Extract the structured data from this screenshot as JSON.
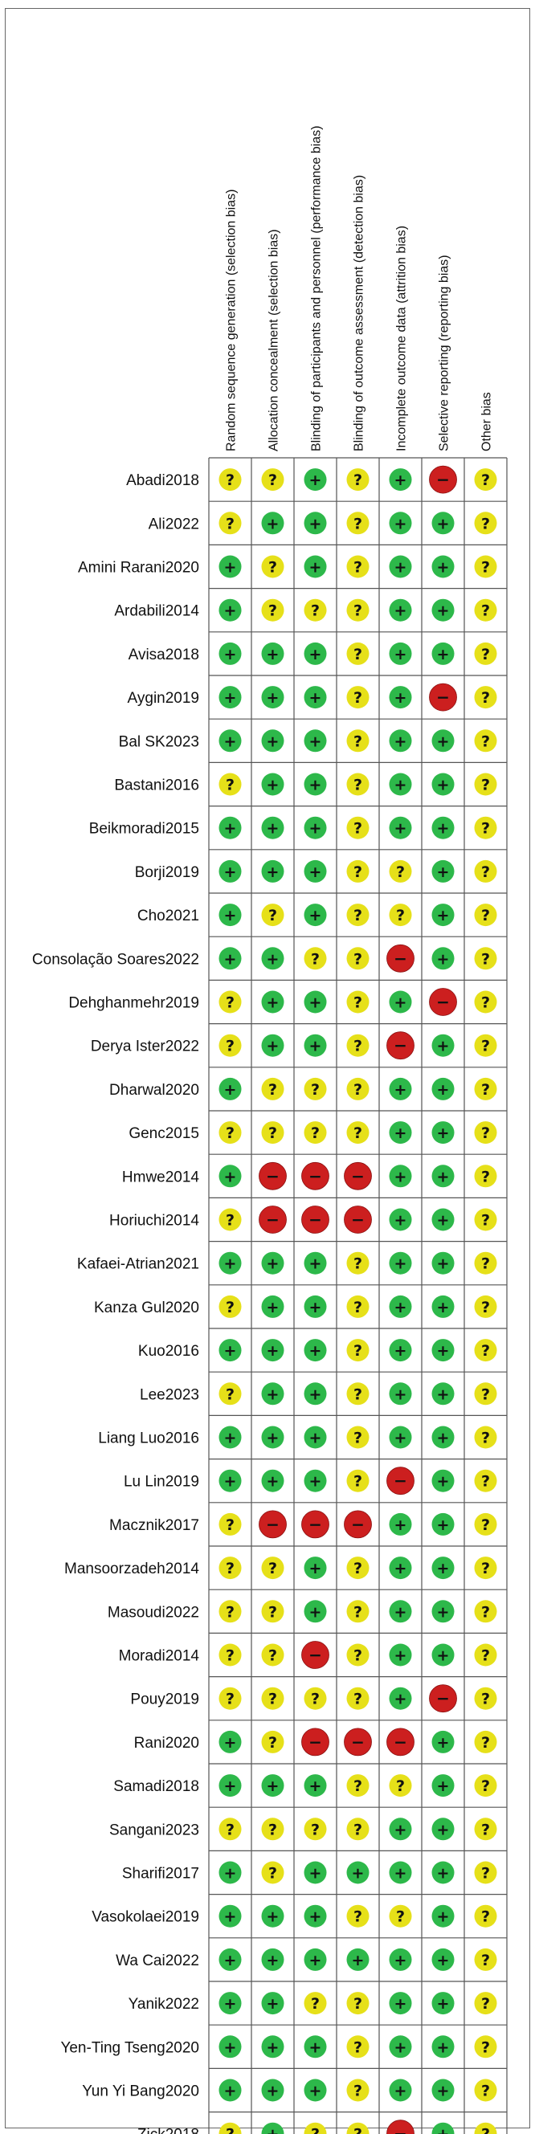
{
  "chart_data": {
    "type": "table",
    "domains": [
      "Random sequence generation (selection bias)",
      "Allocation concealment (selection bias)",
      "Blinding of participants and personnel (performance bias)",
      "Blinding of outcome assessment (detection bias)",
      "Incomplete outcome data (attrition bias)",
      "Selective reporting (reporting bias)",
      "Other bias"
    ],
    "legend": {
      "low": {
        "symbol": "+",
        "color": "#2db84a"
      },
      "unclear": {
        "symbol": "?",
        "color": "#e6e019"
      },
      "high": {
        "symbol": "−",
        "color": "#cc1f1f"
      }
    },
    "studies": [
      {
        "name": "Abadi2018",
        "ratings": [
          "?",
          "?",
          "+",
          "?",
          "+",
          "-",
          "?"
        ]
      },
      {
        "name": "Ali2022",
        "ratings": [
          "?",
          "+",
          "+",
          "?",
          "+",
          "+",
          "?"
        ]
      },
      {
        "name": "Amini Rarani2020",
        "ratings": [
          "+",
          "?",
          "+",
          "?",
          "+",
          "+",
          "?"
        ]
      },
      {
        "name": "Ardabili2014",
        "ratings": [
          "+",
          "?",
          "?",
          "?",
          "+",
          "+",
          "?"
        ]
      },
      {
        "name": "Avisa2018",
        "ratings": [
          "+",
          "+",
          "+",
          "?",
          "+",
          "+",
          "?"
        ]
      },
      {
        "name": "Aygin2019",
        "ratings": [
          "+",
          "+",
          "+",
          "?",
          "+",
          "-",
          "?"
        ]
      },
      {
        "name": "Bal SK2023",
        "ratings": [
          "+",
          "+",
          "+",
          "?",
          "+",
          "+",
          "?"
        ]
      },
      {
        "name": "Bastani2016",
        "ratings": [
          "?",
          "+",
          "+",
          "?",
          "+",
          "+",
          "?"
        ]
      },
      {
        "name": "Beikmoradi2015",
        "ratings": [
          "+",
          "+",
          "+",
          "?",
          "+",
          "+",
          "?"
        ]
      },
      {
        "name": "Borji2019",
        "ratings": [
          "+",
          "+",
          "+",
          "?",
          "?",
          "+",
          "?"
        ]
      },
      {
        "name": "Cho2021",
        "ratings": [
          "+",
          "?",
          "+",
          "?",
          "?",
          "+",
          "?"
        ]
      },
      {
        "name": "Consolação Soares2022",
        "ratings": [
          "+",
          "+",
          "?",
          "?",
          "-",
          "+",
          "?"
        ]
      },
      {
        "name": "Dehghanmehr2019",
        "ratings": [
          "?",
          "+",
          "+",
          "?",
          "+",
          "-",
          "?"
        ]
      },
      {
        "name": "Derya Ister2022",
        "ratings": [
          "?",
          "+",
          "+",
          "?",
          "-",
          "+",
          "?"
        ]
      },
      {
        "name": "Dharwal2020",
        "ratings": [
          "+",
          "?",
          "?",
          "?",
          "+",
          "+",
          "?"
        ]
      },
      {
        "name": "Genc2015",
        "ratings": [
          "?",
          "?",
          "?",
          "?",
          "+",
          "+",
          "?"
        ]
      },
      {
        "name": "Hmwe2014",
        "ratings": [
          "+",
          "-",
          "-",
          "-",
          "+",
          "+",
          "?"
        ]
      },
      {
        "name": "Horiuchi2014",
        "ratings": [
          "?",
          "-",
          "-",
          "-",
          "+",
          "+",
          "?"
        ]
      },
      {
        "name": "Kafaei-Atrian2021",
        "ratings": [
          "+",
          "+",
          "+",
          "?",
          "+",
          "+",
          "?"
        ]
      },
      {
        "name": "Kanza Gul2020",
        "ratings": [
          "?",
          "+",
          "+",
          "?",
          "+",
          "+",
          "?"
        ]
      },
      {
        "name": "Kuo2016",
        "ratings": [
          "+",
          "+",
          "+",
          "?",
          "+",
          "+",
          "?"
        ]
      },
      {
        "name": "Lee2023",
        "ratings": [
          "?",
          "+",
          "+",
          "?",
          "+",
          "+",
          "?"
        ]
      },
      {
        "name": "Liang Luo2016",
        "ratings": [
          "+",
          "+",
          "+",
          "?",
          "+",
          "+",
          "?"
        ]
      },
      {
        "name": "Lu Lin2019",
        "ratings": [
          "+",
          "+",
          "+",
          "?",
          "-",
          "+",
          "?"
        ]
      },
      {
        "name": "Macznik2017",
        "ratings": [
          "?",
          "-",
          "-",
          "-",
          "+",
          "+",
          "?"
        ]
      },
      {
        "name": "Mansoorzadeh2014",
        "ratings": [
          "?",
          "?",
          "+",
          "?",
          "+",
          "+",
          "?"
        ]
      },
      {
        "name": "Masoudi2022",
        "ratings": [
          "?",
          "?",
          "+",
          "?",
          "+",
          "+",
          "?"
        ]
      },
      {
        "name": "Moradi2014",
        "ratings": [
          "?",
          "?",
          "-",
          "?",
          "+",
          "+",
          "?"
        ]
      },
      {
        "name": "Pouy2019",
        "ratings": [
          "?",
          "?",
          "?",
          "?",
          "+",
          "-",
          "?"
        ]
      },
      {
        "name": "Rani2020",
        "ratings": [
          "+",
          "?",
          "-",
          "-",
          "-",
          "+",
          "?"
        ]
      },
      {
        "name": "Samadi2018",
        "ratings": [
          "+",
          "+",
          "+",
          "?",
          "?",
          "+",
          "?"
        ]
      },
      {
        "name": "Sangani2023",
        "ratings": [
          "?",
          "?",
          "?",
          "?",
          "+",
          "+",
          "?"
        ]
      },
      {
        "name": "Sharifi2017",
        "ratings": [
          "+",
          "?",
          "+",
          "+",
          "+",
          "+",
          "?"
        ]
      },
      {
        "name": "Vasokolaei2019",
        "ratings": [
          "+",
          "+",
          "+",
          "?",
          "?",
          "+",
          "?"
        ]
      },
      {
        "name": "Wa Cai2022",
        "ratings": [
          "+",
          "+",
          "+",
          "+",
          "+",
          "+",
          "?"
        ]
      },
      {
        "name": "Yanik2022",
        "ratings": [
          "+",
          "+",
          "?",
          "?",
          "+",
          "+",
          "?"
        ]
      },
      {
        "name": "Yen-Ting Tseng2020",
        "ratings": [
          "+",
          "+",
          "+",
          "?",
          "+",
          "+",
          "?"
        ]
      },
      {
        "name": "Yun Yi Bang2020",
        "ratings": [
          "+",
          "+",
          "+",
          "?",
          "+",
          "+",
          "?"
        ]
      },
      {
        "name": "Zick2018",
        "ratings": [
          "?",
          "+",
          "?",
          "?",
          "-",
          "+",
          "?"
        ]
      }
    ]
  }
}
